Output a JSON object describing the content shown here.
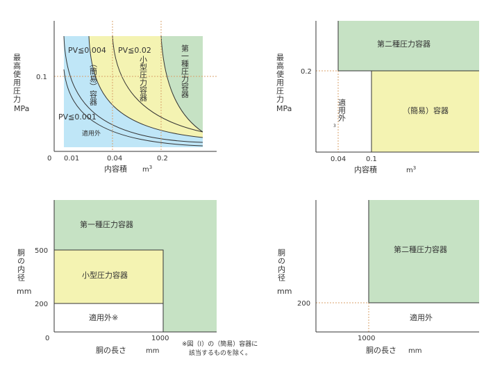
{
  "colors": {
    "blue": "#bfe6f7",
    "yellow": "#f4f3b2",
    "green": "#c6e2c4",
    "axis": "#333333",
    "dotted": "#d9a06a"
  },
  "panel1": {
    "ylabel": "最高使用圧力",
    "yunit": "MPa",
    "xlabel": "内容積",
    "xunit": "m3",
    "origin": "0",
    "xticks": [
      "0.01",
      "0.04",
      "0.2"
    ],
    "yticks": [
      "0.1"
    ],
    "pv1": "PV≦0.004",
    "pv2": "PV≦0.02",
    "pv3": "PV≦0.001",
    "zone_simple": "（簡易）容器",
    "zone_small": "小型圧力容器",
    "zone_first": "第一種圧力容器",
    "zone_excluded": "適用外"
  },
  "panel2": {
    "ylabel": "最高使用圧力",
    "yunit": "MPa",
    "xlabel": "内容積",
    "xunit": "m3",
    "xticks": [
      "0.04",
      "0.1"
    ],
    "yticks": [
      "0.2"
    ],
    "zone_second": "第二種圧力容器",
    "zone_simple": "（簡易）容器",
    "zone_excluded": "適用外",
    "tiny_mark": "3"
  },
  "panel3": {
    "ylabel": "胴の内径",
    "yunit": "mm",
    "xlabel": "胴の長さ",
    "xunit": "mm",
    "origin": "0",
    "xticks": [
      "1000"
    ],
    "yticks": [
      "500",
      "200"
    ],
    "zone_first": "第一種圧力容器",
    "zone_small": "小型圧力容器",
    "zone_excluded": "適用外※",
    "note_line1": "※図（Ⅰ）の（簡易）容器に",
    "note_line2": "該当するものを除く。"
  },
  "panel4": {
    "ylabel": "胴の内径",
    "yunit": "mm",
    "xlabel": "胴の長さ",
    "xunit": "mm",
    "xticks": [
      "1000"
    ],
    "yticks": [
      "200"
    ],
    "zone_second": "第二種圧力容器",
    "zone_excluded": "適用外"
  }
}
